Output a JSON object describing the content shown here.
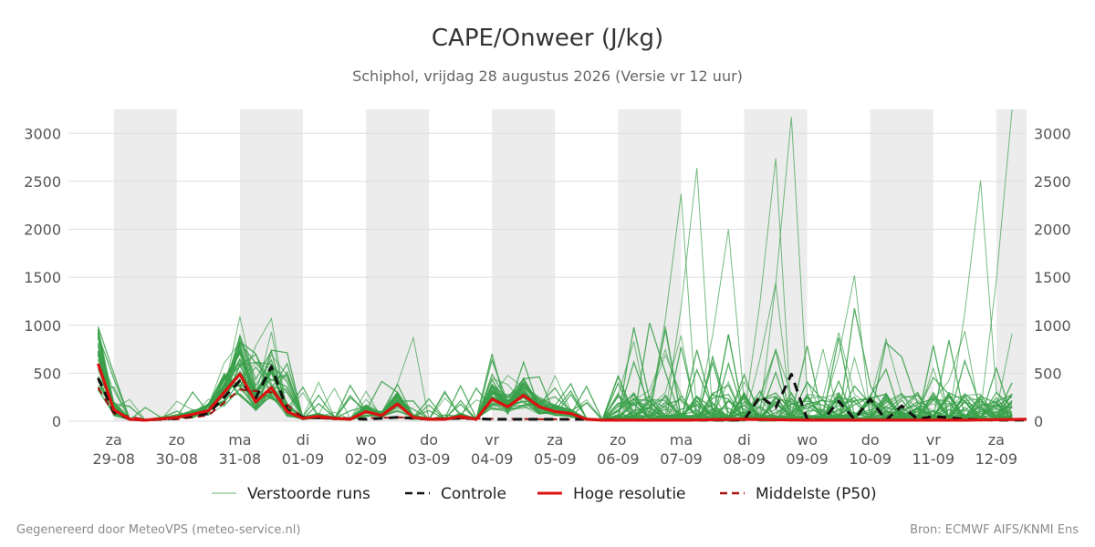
{
  "chart_data": {
    "type": "line",
    "title": "CAPE/Onweer (J/kg)",
    "subtitle": "Schiphol, vrijdag 28 augustus 2026 (Versie vr 12 uur)",
    "ylim": [
      0,
      3250
    ],
    "y_ticks": [
      0,
      500,
      1000,
      1500,
      2000,
      2500,
      3000
    ],
    "x_range": [
      -0.72,
      14.48
    ],
    "x_ticks": [
      {
        "x": 0,
        "day": "za",
        "date": "29-08"
      },
      {
        "x": 1,
        "day": "zo",
        "date": "30-08"
      },
      {
        "x": 2,
        "day": "ma",
        "date": "31-08"
      },
      {
        "x": 3,
        "day": "di",
        "date": "01-09"
      },
      {
        "x": 4,
        "day": "wo",
        "date": "02-09"
      },
      {
        "x": 5,
        "day": "do",
        "date": "03-09"
      },
      {
        "x": 6,
        "day": "vr",
        "date": "04-09"
      },
      {
        "x": 7,
        "day": "za",
        "date": "05-09"
      },
      {
        "x": 8,
        "day": "zo",
        "date": "06-09"
      },
      {
        "x": 9,
        "day": "ma",
        "date": "07-09"
      },
      {
        "x": 10,
        "day": "di",
        "date": "08-09"
      },
      {
        "x": 11,
        "day": "wo",
        "date": "09-09"
      },
      {
        "x": 12,
        "day": "do",
        "date": "10-09"
      },
      {
        "x": 13,
        "day": "vr",
        "date": "11-09"
      },
      {
        "x": 14,
        "day": "za",
        "date": "12-09"
      }
    ],
    "night_bands": [
      [
        0,
        1
      ],
      [
        2,
        3
      ],
      [
        4,
        5
      ],
      [
        6,
        7
      ],
      [
        8,
        9
      ],
      [
        10,
        11
      ],
      [
        12,
        13
      ],
      [
        14,
        14.48
      ]
    ],
    "grid": true,
    "legend_placement": "bottom",
    "legend": [
      {
        "label": "Verstoorde runs",
        "color": "#3aa04a",
        "style": "thin"
      },
      {
        "label": "Controle",
        "color": "#111111",
        "style": "dashed"
      },
      {
        "label": "Hoge resolutie",
        "color": "#dd1111",
        "style": "solid"
      },
      {
        "label": "Middelste (P50)",
        "color": "#aa1111",
        "style": "dashed"
      }
    ],
    "series": [
      {
        "name": "Hoge resolutie",
        "color": "#dd1111",
        "x": [
          -0.25,
          0,
          0.25,
          0.5,
          1,
          1.25,
          1.5,
          1.75,
          2,
          2.25,
          2.5,
          2.75,
          3,
          3.25,
          3.5,
          3.75,
          4,
          4.25,
          4.5,
          4.75,
          5,
          5.25,
          5.5,
          5.75,
          6,
          6.25,
          6.5,
          6.75,
          7,
          7.25,
          7.5,
          7.75,
          8,
          8.5,
          9,
          9.5,
          10,
          10.5,
          11,
          11.5,
          12,
          12.5,
          13,
          13.5,
          14,
          14.48
        ],
        "y": [
          600,
          120,
          20,
          10,
          40,
          70,
          110,
          300,
          490,
          200,
          350,
          100,
          30,
          50,
          30,
          20,
          100,
          60,
          180,
          40,
          20,
          20,
          50,
          20,
          230,
          150,
          270,
          150,
          100,
          80,
          20,
          10,
          10,
          10,
          10,
          15,
          20,
          15,
          10,
          10,
          10,
          10,
          10,
          10,
          15,
          20
        ]
      },
      {
        "name": "Controle",
        "color": "#111111",
        "x": [
          -0.25,
          0,
          0.25,
          0.5,
          1,
          1.5,
          1.75,
          2,
          2.25,
          2.5,
          2.75,
          3,
          3.5,
          4,
          4.5,
          5,
          5.5,
          6,
          6.5,
          7,
          7.5,
          8,
          8.5,
          9,
          9.5,
          10,
          10.25,
          10.5,
          10.75,
          11,
          11.25,
          11.5,
          11.75,
          12,
          12.25,
          12.5,
          12.75,
          13,
          13.5,
          14,
          14.48
        ],
        "y": [
          450,
          100,
          20,
          10,
          30,
          80,
          250,
          420,
          240,
          570,
          120,
          40,
          30,
          20,
          40,
          20,
          30,
          20,
          20,
          20,
          20,
          10,
          10,
          10,
          10,
          10,
          260,
          140,
          490,
          20,
          10,
          210,
          20,
          230,
          10,
          160,
          20,
          50,
          20,
          10,
          10
        ]
      },
      {
        "name": "Middelste (P50)",
        "color": "#aa1111",
        "x": [
          -0.25,
          0,
          0.5,
          1,
          1.5,
          2,
          2.5,
          3,
          3.5,
          4,
          4.5,
          5,
          6,
          7,
          8,
          9,
          10,
          11,
          12,
          13,
          14,
          14.48
        ],
        "y": [
          350,
          80,
          15,
          20,
          60,
          330,
          300,
          40,
          20,
          30,
          40,
          30,
          25,
          20,
          10,
          10,
          15,
          20,
          15,
          15,
          15,
          15
        ]
      }
    ],
    "ensemble_peaks": [
      {
        "x": 2.5,
        "y": 1070
      },
      {
        "x": 4.75,
        "y": 870
      },
      {
        "x": 9.25,
        "y": 2640
      },
      {
        "x": 9.0,
        "y": 2370
      },
      {
        "x": 9.75,
        "y": 2000
      },
      {
        "x": 10.5,
        "y": 1440
      },
      {
        "x": 10.75,
        "y": 3170
      },
      {
        "x": 10.5,
        "y": 2740
      },
      {
        "x": 11.75,
        "y": 1520
      },
      {
        "x": 13.5,
        "y": 940
      },
      {
        "x": 13.75,
        "y": 2510
      },
      {
        "x": 14.48,
        "y": 3250
      }
    ]
  },
  "footer": {
    "left": "Gegenereerd door MeteoVPS (meteo-service.nl)",
    "right": "Bron: ECMWF AIFS/KNMI Ens"
  }
}
